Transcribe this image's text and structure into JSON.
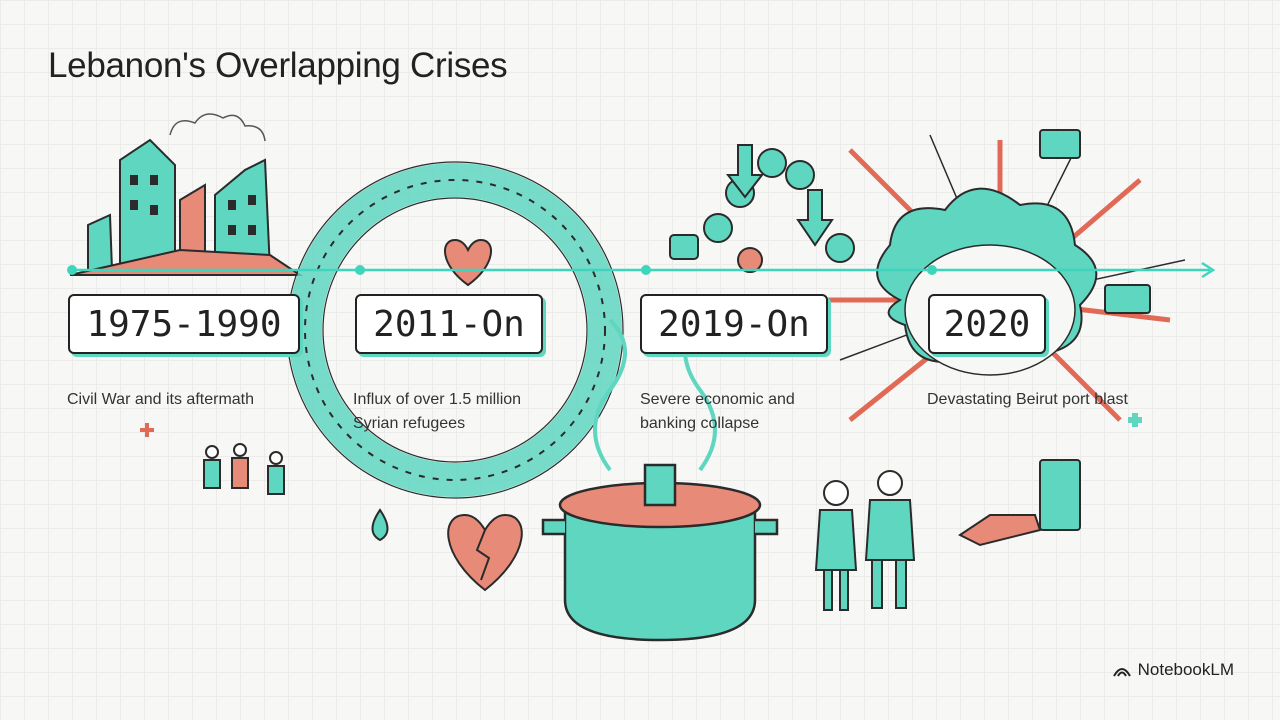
{
  "header": {
    "title": "Lebanon's Overlapping Crises"
  },
  "timeline": {
    "events": [
      {
        "period": "1975-1990",
        "description": "Civil War and its aftermath"
      },
      {
        "period": "2011-On",
        "description": "Influx of over 1.5 million Syrian refugees"
      },
      {
        "period": "2019-On",
        "description": "Severe economic and banking collapse"
      },
      {
        "period": "2020",
        "description": "Devastating Beirut port blast"
      }
    ]
  },
  "footer": {
    "brand": "NotebookLM"
  }
}
